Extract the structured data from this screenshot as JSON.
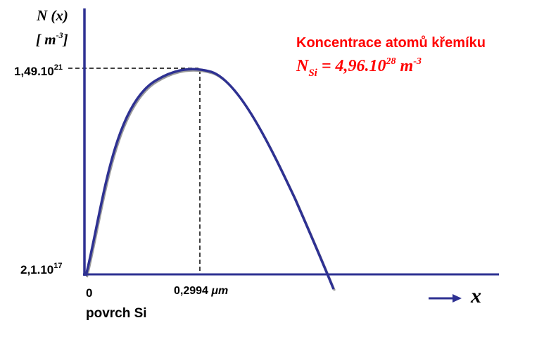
{
  "chart_data": {
    "type": "line",
    "title": "",
    "ylabel": {
      "line1": "N (x)",
      "unit_open": "[ m",
      "unit_exp": "-3",
      "unit_close": "]"
    },
    "xlabel": "x",
    "y_ticks": [
      {
        "mantissa": "1,49.10",
        "exponent": "21"
      },
      {
        "mantissa": "2,1.10",
        "exponent": "17"
      }
    ],
    "x_ticks": [
      {
        "label": "0"
      },
      {
        "label": "0,2994 ",
        "unit": "μm"
      }
    ],
    "x_sublabel": "povrch Si",
    "annotation": {
      "heading": "Koncentrace atomů křemíku",
      "formula": {
        "symbol": "N",
        "subscript": "Si",
        "eq": " = 4,96.10",
        "exp": "28",
        "unit": " m",
        "unit_exp": "-3"
      }
    },
    "peak": {
      "x_um": 0.2994,
      "y": 1.49e+21
    },
    "baseline": {
      "y": 2.1e+17
    },
    "colors": {
      "curve": "#2e3192",
      "axes": "#2e3192",
      "annotation": "#ff0000",
      "text": "#000000"
    }
  }
}
